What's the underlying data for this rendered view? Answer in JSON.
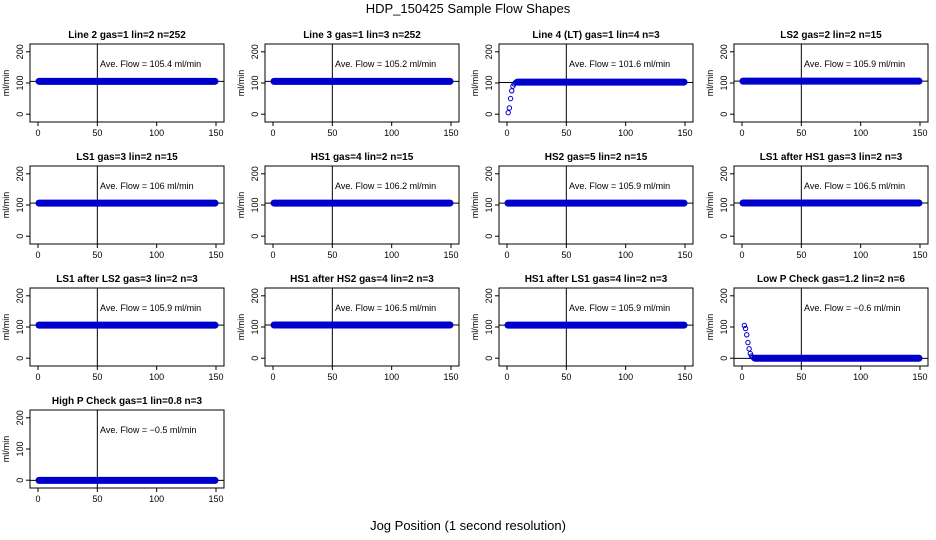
{
  "title": "HDP_150425  Sample Flow Shapes",
  "xlabel": "Jog Position (1 second resolution)",
  "colors": {
    "points": "#0000CC",
    "axes": "#000000",
    "background": "#FFFFFF"
  },
  "chart_data": [
    {
      "type": "scatter",
      "title": "Line 2 gas=1 lin=2 n=252",
      "ylabel": "ml/min",
      "annotation": "Ave. Flow =  105.4  ml/min",
      "xlim": [
        0,
        150
      ],
      "ylim": [
        -25,
        225
      ],
      "xticks": [
        0,
        50,
        100,
        150
      ],
      "yticks": [
        0,
        100,
        200
      ],
      "vline_x": 50,
      "hline_y": 105.4,
      "series": [
        {
          "x": [
            0,
            150
          ],
          "y": [
            105.4,
            105.4
          ],
          "shape": "flat"
        }
      ]
    },
    {
      "type": "scatter",
      "title": "Line 3 gas=1 lin=3 n=252",
      "ylabel": "ml/min",
      "annotation": "Ave. Flow =  105.2  ml/min",
      "xlim": [
        0,
        150
      ],
      "ylim": [
        -25,
        225
      ],
      "xticks": [
        0,
        50,
        100,
        150
      ],
      "yticks": [
        0,
        100,
        200
      ],
      "vline_x": 50,
      "hline_y": 105.2,
      "series": [
        {
          "x": [
            0,
            150
          ],
          "y": [
            105.2,
            105.2
          ],
          "shape": "flat"
        }
      ]
    },
    {
      "type": "scatter",
      "title": "Line 4 (LT) gas=1 lin=4 n=3",
      "ylabel": "ml/min",
      "annotation": "Ave. Flow =  101.6  ml/min",
      "xlim": [
        0,
        150
      ],
      "ylim": [
        -25,
        225
      ],
      "xticks": [
        0,
        50,
        100,
        150
      ],
      "yticks": [
        0,
        100,
        200
      ],
      "vline_x": 50,
      "hline_y": 101.6,
      "series": [
        {
          "x": [
            1,
            2,
            3,
            4,
            5,
            6,
            7,
            8,
            150
          ],
          "y": [
            5,
            20,
            50,
            75,
            90,
            97,
            101,
            103,
            103
          ],
          "shape": "rise"
        }
      ]
    },
    {
      "type": "scatter",
      "title": "LS2 gas=2 lin=2 n=15",
      "ylabel": "ml/min",
      "annotation": "Ave. Flow =  105.9  ml/min",
      "xlim": [
        0,
        150
      ],
      "ylim": [
        -25,
        225
      ],
      "xticks": [
        0,
        50,
        100,
        150
      ],
      "yticks": [
        0,
        100,
        200
      ],
      "vline_x": 50,
      "hline_y": 105.9,
      "series": [
        {
          "x": [
            0,
            150
          ],
          "y": [
            105.9,
            105.9
          ],
          "shape": "flat"
        }
      ]
    },
    {
      "type": "scatter",
      "title": "LS1 gas=3 lin=2 n=15",
      "ylabel": "ml/min",
      "annotation": "Ave. Flow =  106  ml/min",
      "xlim": [
        0,
        150
      ],
      "ylim": [
        -25,
        225
      ],
      "xticks": [
        0,
        50,
        100,
        150
      ],
      "yticks": [
        0,
        100,
        200
      ],
      "vline_x": 50,
      "hline_y": 106,
      "series": [
        {
          "x": [
            0,
            150
          ],
          "y": [
            106,
            106
          ],
          "shape": "flat"
        }
      ]
    },
    {
      "type": "scatter",
      "title": "HS1 gas=4 lin=2 n=15",
      "ylabel": "ml/min",
      "annotation": "Ave. Flow =  106.2  ml/min",
      "xlim": [
        0,
        150
      ],
      "ylim": [
        -25,
        225
      ],
      "xticks": [
        0,
        50,
        100,
        150
      ],
      "yticks": [
        0,
        100,
        200
      ],
      "vline_x": 50,
      "hline_y": 106.2,
      "series": [
        {
          "x": [
            0,
            150
          ],
          "y": [
            106.2,
            106.2
          ],
          "shape": "flat"
        }
      ]
    },
    {
      "type": "scatter",
      "title": "HS2 gas=5 lin=2 n=15",
      "ylabel": "ml/min",
      "annotation": "Ave. Flow =  105.9  ml/min",
      "xlim": [
        0,
        150
      ],
      "ylim": [
        -25,
        225
      ],
      "xticks": [
        0,
        50,
        100,
        150
      ],
      "yticks": [
        0,
        100,
        200
      ],
      "vline_x": 50,
      "hline_y": 105.9,
      "series": [
        {
          "x": [
            0,
            150
          ],
          "y": [
            105.9,
            105.9
          ],
          "shape": "flat"
        }
      ]
    },
    {
      "type": "scatter",
      "title": "LS1 after HS1 gas=3 lin=2 n=3",
      "ylabel": "ml/min",
      "annotation": "Ave. Flow =  106.5  ml/min",
      "xlim": [
        0,
        150
      ],
      "ylim": [
        -25,
        225
      ],
      "xticks": [
        0,
        50,
        100,
        150
      ],
      "yticks": [
        0,
        100,
        200
      ],
      "vline_x": 50,
      "hline_y": 106.5,
      "series": [
        {
          "x": [
            0,
            150
          ],
          "y": [
            106.5,
            106.5
          ],
          "shape": "flat"
        }
      ]
    },
    {
      "type": "scatter",
      "title": "LS1 after LS2 gas=3 lin=2 n=3",
      "ylabel": "ml/min",
      "annotation": "Ave. Flow =  105.9  ml/min",
      "xlim": [
        0,
        150
      ],
      "ylim": [
        -25,
        225
      ],
      "xticks": [
        0,
        50,
        100,
        150
      ],
      "yticks": [
        0,
        100,
        200
      ],
      "vline_x": 50,
      "hline_y": 105.9,
      "series": [
        {
          "x": [
            0,
            150
          ],
          "y": [
            105.9,
            105.9
          ],
          "shape": "flat"
        }
      ]
    },
    {
      "type": "scatter",
      "title": "HS1 after HS2 gas=4 lin=2 n=3",
      "ylabel": "ml/min",
      "annotation": "Ave. Flow =  106.5  ml/min",
      "xlim": [
        0,
        150
      ],
      "ylim": [
        -25,
        225
      ],
      "xticks": [
        0,
        50,
        100,
        150
      ],
      "yticks": [
        0,
        100,
        200
      ],
      "vline_x": 50,
      "hline_y": 106.5,
      "series": [
        {
          "x": [
            0,
            150
          ],
          "y": [
            106.5,
            106.5
          ],
          "shape": "flat"
        }
      ]
    },
    {
      "type": "scatter",
      "title": "HS1 after LS1 gas=4 lin=2 n=3",
      "ylabel": "ml/min",
      "annotation": "Ave. Flow =  105.9  ml/min",
      "xlim": [
        0,
        150
      ],
      "ylim": [
        -25,
        225
      ],
      "xticks": [
        0,
        50,
        100,
        150
      ],
      "yticks": [
        0,
        100,
        200
      ],
      "vline_x": 50,
      "hline_y": 105.9,
      "series": [
        {
          "x": [
            0,
            150
          ],
          "y": [
            105.9,
            105.9
          ],
          "shape": "flat"
        }
      ]
    },
    {
      "type": "scatter",
      "title": "Low P Check gas=1.2 lin=2 n=6",
      "ylabel": "ml/min",
      "annotation": "Ave. Flow =  −0.6  ml/min",
      "xlim": [
        0,
        150
      ],
      "ylim": [
        -25,
        225
      ],
      "xticks": [
        0,
        50,
        100,
        150
      ],
      "yticks": [
        0,
        100,
        200
      ],
      "vline_x": 50,
      "hline_y": -0.6,
      "series": [
        {
          "x": [
            2,
            3,
            4,
            5,
            6,
            7,
            8,
            9,
            10,
            150
          ],
          "y": [
            105,
            95,
            75,
            50,
            30,
            15,
            7,
            3,
            1,
            0
          ],
          "shape": "decay"
        }
      ]
    },
    {
      "type": "scatter",
      "title": "High P Check gas=1 lin=0.8 n=3",
      "ylabel": "ml/min",
      "annotation": "Ave. Flow =  −0.5  ml/min",
      "xlim": [
        0,
        150
      ],
      "ylim": [
        -25,
        225
      ],
      "xticks": [
        0,
        50,
        100,
        150
      ],
      "yticks": [
        0,
        100,
        200
      ],
      "vline_x": 50,
      "hline_y": -0.5,
      "series": [
        {
          "x": [
            0,
            150
          ],
          "y": [
            -0.5,
            -0.5
          ],
          "shape": "flat"
        }
      ]
    }
  ]
}
